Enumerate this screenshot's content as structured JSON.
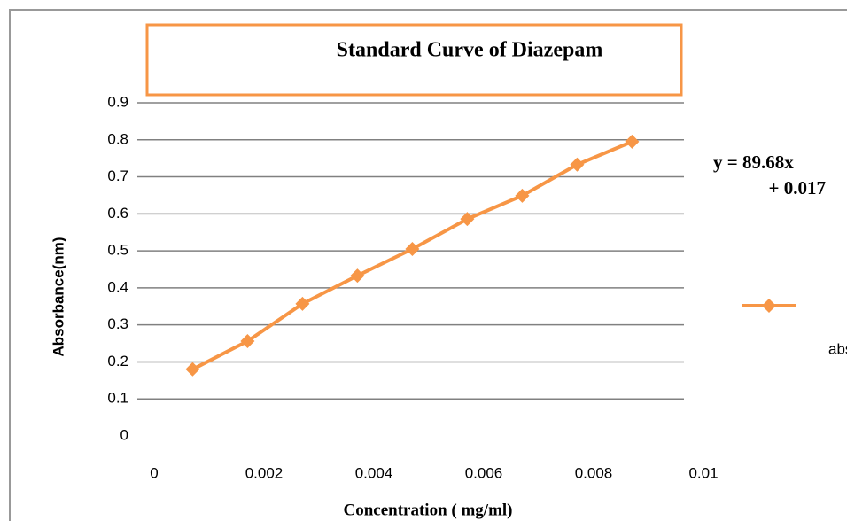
{
  "chart_data": {
    "type": "line",
    "title": "Standard Curve of Diazepam",
    "x_label": "Concentration ( mg/ml)",
    "y_label": "Absorbance(nm)",
    "annotations": [
      "y = 89.68x",
      "+ 0.017"
    ],
    "x": [
      0.0007,
      0.0017,
      0.0027,
      0.0037,
      0.0047,
      0.0057,
      0.0067,
      0.0077,
      0.0087
    ],
    "series": [
      {
        "name": "abs",
        "color": "#f79646",
        "values": [
          0.18,
          0.256,
          0.357,
          0.433,
          0.505,
          0.586,
          0.649,
          0.733,
          0.795
        ]
      }
    ],
    "xlim": [
      0,
      0.01
    ],
    "xticks": [
      0,
      0.002,
      0.004,
      0.006,
      0.008,
      0.01
    ],
    "ylim": [
      0,
      0.9
    ],
    "yticks": [
      0,
      0.1,
      0.2,
      0.3,
      0.4,
      0.5,
      0.6,
      0.7,
      0.8,
      0.9
    ],
    "grid": true,
    "legend": "right"
  }
}
